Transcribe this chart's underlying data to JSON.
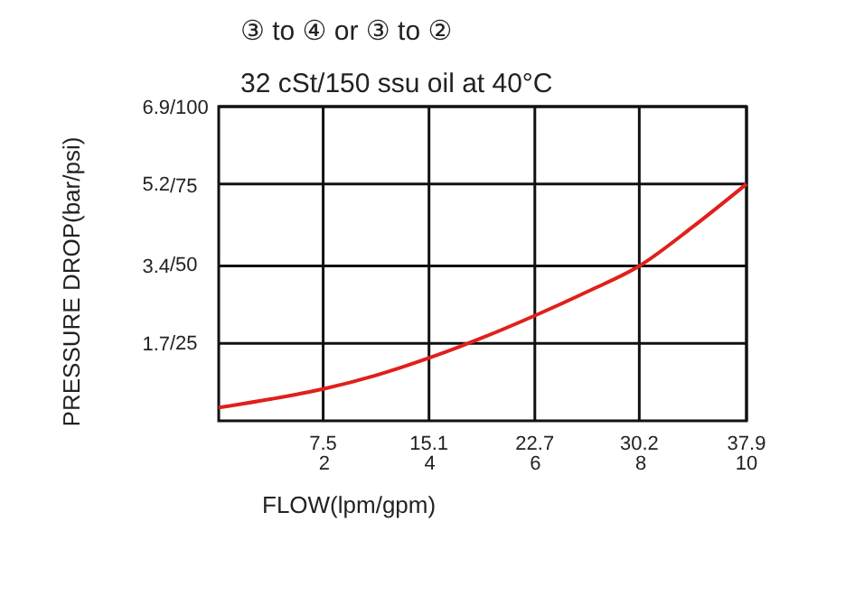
{
  "chart_data": {
    "type": "line",
    "title": "③ to ④ or ③ to ②",
    "subtitle": "32 cSt/150 ssu oil at 40°C",
    "xlabel": "FLOW(lpm/gpm)",
    "ylabel": "PRESSURE DROP(bar/psi)",
    "x": [
      0,
      3.8,
      7.5,
      11.3,
      15.1,
      18.9,
      22.7,
      26.5,
      30.2,
      34,
      37.9
    ],
    "series": [
      {
        "color": "#e0201c",
        "values": [
          0.29,
          0.48,
          0.7,
          1.0,
          1.38,
          1.82,
          2.31,
          2.84,
          3.4,
          4.25,
          5.2
        ]
      }
    ],
    "xlim": [
      0,
      37.9
    ],
    "xticks": [
      7.5,
      15.1,
      22.7,
      30.2,
      37.9
    ],
    "x2lim": [
      0,
      10
    ],
    "x2ticks": [
      2,
      4,
      6,
      8,
      10
    ],
    "ylim": [
      0,
      6.9
    ],
    "yticks": [
      1.7,
      3.4,
      5.2,
      6.9
    ],
    "y2lim": [
      0,
      100
    ],
    "y2ticks": [
      {
        "value": 25,
        "label": "/25"
      },
      {
        "value": 50,
        "label": "/50"
      },
      {
        "value": 75,
        "label": "/75"
      },
      {
        "value": 100,
        "label": "/100"
      }
    ],
    "grid": true,
    "marker": "none",
    "line_style": "solid"
  }
}
